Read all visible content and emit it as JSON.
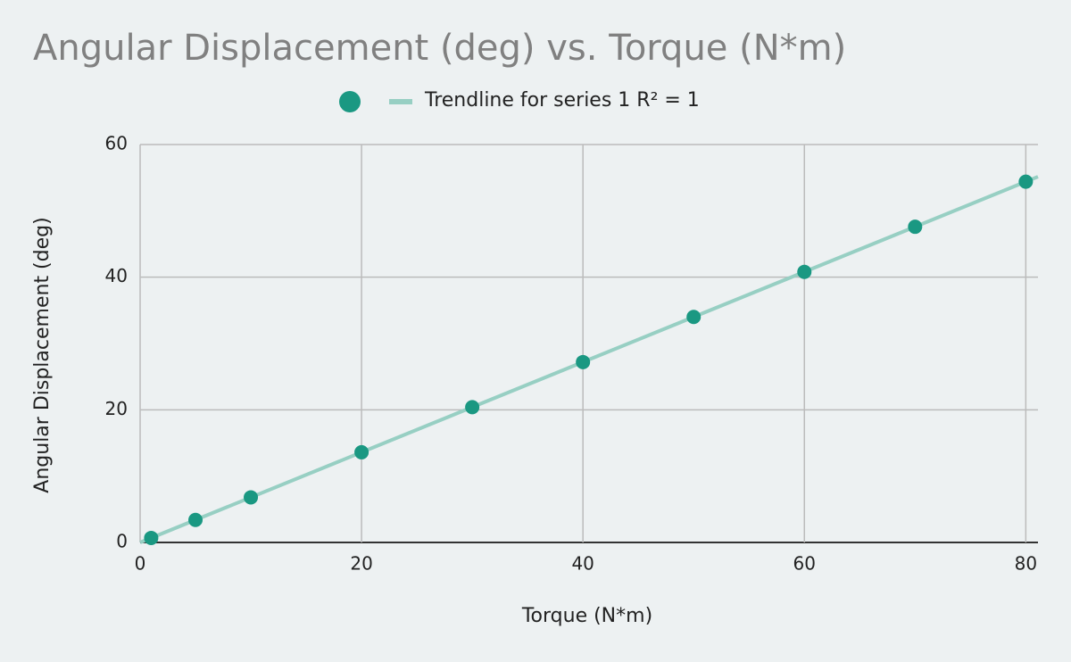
{
  "chart_data": {
    "type": "scatter",
    "title": "Angular Displacement (deg) vs. Torque (N*m)",
    "x_label": "Torque (N*m)",
    "y_label": "Angular Displacement (deg)",
    "series": [
      {
        "color": "#1a9882",
        "x": [
          1,
          5,
          10,
          20,
          30,
          40,
          50,
          60,
          70,
          80
        ],
        "values": [
          0.68,
          3.4,
          6.8,
          13.6,
          20.4,
          27.2,
          34,
          40.8,
          47.6,
          54.4
        ]
      }
    ],
    "trendline": {
      "label": "Trendline for series 1 R² = 1",
      "color": "#97cfc3"
    },
    "xlim": [
      0,
      81.1
    ],
    "xticks": [
      0,
      20,
      40,
      60,
      80
    ],
    "ylim": [
      0,
      60
    ],
    "yticks": [
      0,
      20,
      40,
      60
    ],
    "grid": true
  }
}
